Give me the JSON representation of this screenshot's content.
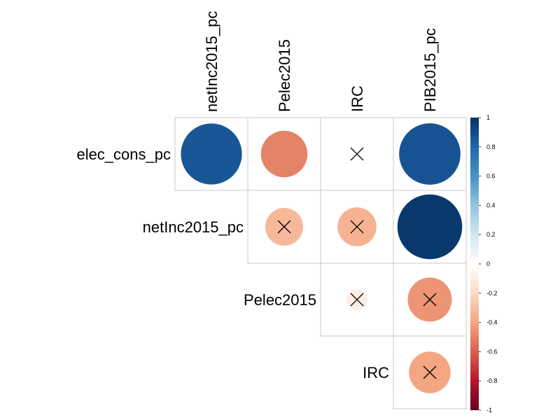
{
  "chart_data": {
    "type": "heatmap",
    "subtype": "correlation-circles-upper-triangle",
    "columns": [
      "netInc2015_pc",
      "Pelec2015",
      "IRC",
      "PIB2015_pc"
    ],
    "rows": [
      "elec_cons_pc",
      "netInc2015_pc",
      "Pelec2015",
      "IRC"
    ],
    "cells": [
      {
        "row": "elec_cons_pc",
        "col": "netInc2015_pc",
        "value": 0.86,
        "insignificant": false
      },
      {
        "row": "elec_cons_pc",
        "col": "Pelec2015",
        "value": -0.5,
        "insignificant": false
      },
      {
        "row": "elec_cons_pc",
        "col": "IRC",
        "value": 0.0,
        "insignificant": true
      },
      {
        "row": "elec_cons_pc",
        "col": "PIB2015_pc",
        "value": 0.87,
        "insignificant": false
      },
      {
        "row": "netInc2015_pc",
        "col": "Pelec2015",
        "value": -0.33,
        "insignificant": true
      },
      {
        "row": "netInc2015_pc",
        "col": "IRC",
        "value": -0.35,
        "insignificant": true
      },
      {
        "row": "netInc2015_pc",
        "col": "PIB2015_pc",
        "value": 0.97,
        "insignificant": false
      },
      {
        "row": "Pelec2015",
        "col": "IRC",
        "value": -0.1,
        "insignificant": true
      },
      {
        "row": "Pelec2015",
        "col": "PIB2015_pc",
        "value": -0.45,
        "insignificant": true
      },
      {
        "row": "IRC",
        "col": "PIB2015_pc",
        "value": -0.4,
        "insignificant": true
      }
    ],
    "colorbar": {
      "range": [
        -1,
        1
      ],
      "ticks": [
        "1",
        "0.8",
        "0.6",
        "0.4",
        "0.2",
        "0",
        "-0.2",
        "-0.4",
        "-0.6",
        "-0.8",
        "-1"
      ],
      "stops": [
        "#67001F",
        "#B2182B",
        "#D6604D",
        "#F4A582",
        "#FDDBC7",
        "#FFFFFF",
        "#D1E5F0",
        "#92C5DE",
        "#4393C3",
        "#2166AC",
        "#053061"
      ]
    },
    "grid": true,
    "legend_position": "right"
  }
}
